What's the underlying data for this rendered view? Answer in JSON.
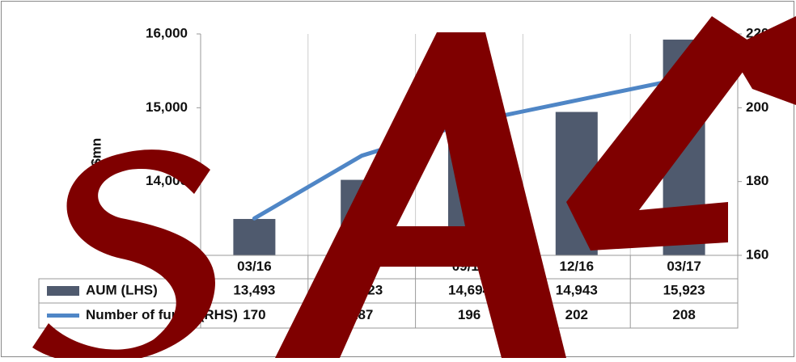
{
  "chart_data": {
    "type": "bar_line_table",
    "categories": [
      "03/16",
      "06/16",
      "09/16",
      "12/16",
      "03/17"
    ],
    "y_label": "US$mn",
    "series": [
      {
        "name": "AUM (LHS)",
        "color": "#4f5a6e",
        "values": [
          13493,
          14023,
          14694,
          14943,
          15923
        ],
        "value_labels": [
          "13,493",
          "14,023",
          "14,694",
          "14,943",
          "15,923"
        ]
      },
      {
        "name": "Number of funds (RHS)",
        "color": "#4f86c6",
        "axis": "y2",
        "values": [
          170,
          187,
          196,
          202,
          208
        ]
      }
    ],
    "ylim": [
      13000,
      16000
    ],
    "yticks": [
      {
        "value": 13000,
        "label": "13,000"
      },
      {
        "value": 14000,
        "label": "14,000"
      },
      {
        "value": 15000,
        "label": "15,000"
      },
      {
        "value": 16000,
        "label": "16,000"
      }
    ],
    "y2lim": [
      160,
      220
    ],
    "y2ticks": [
      160,
      180,
      200,
      220
    ]
  }
}
